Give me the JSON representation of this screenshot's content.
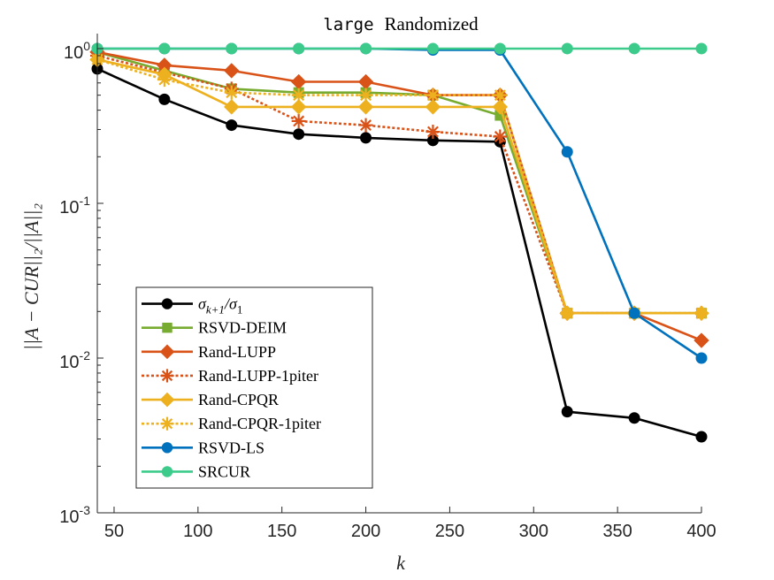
{
  "chart_data": {
    "type": "line",
    "title_mono": "large",
    "title_rest": "Randomized",
    "xlabel": "k",
    "ylabel": "||A − CUR||₂/||A||₂",
    "xlim": [
      40,
      400
    ],
    "ylim": [
      0.001,
      1.25
    ],
    "yscale": "log",
    "x_ticks": [
      50,
      100,
      150,
      200,
      250,
      300,
      350,
      400
    ],
    "y_ticks": [
      {
        "value": 0.001,
        "base": "10",
        "exp": "-3"
      },
      {
        "value": 0.01,
        "base": "10",
        "exp": "-2"
      },
      {
        "value": 0.1,
        "base": "10",
        "exp": "-1"
      },
      {
        "value": 1,
        "base": "10",
        "exp": "0"
      }
    ],
    "grid": false,
    "legend_position": "bottom-left",
    "series": [
      {
        "name": "σk+1/σ1",
        "label_main": "σ",
        "label_sub1": "k+1",
        "label_sep": "/σ",
        "label_sub2": "1",
        "color": "#000000",
        "marker": "circle",
        "dash": "solid",
        "x": [
          40,
          80,
          120,
          160,
          200,
          240,
          280,
          320,
          360,
          400
        ],
        "y": [
          0.74,
          0.47,
          0.32,
          0.28,
          0.265,
          0.255,
          0.25,
          0.0045,
          0.0041,
          0.0031
        ]
      },
      {
        "name": "RSVD-DEIM",
        "color": "#77AC30",
        "marker": "square",
        "dash": "solid",
        "x": [
          40,
          80,
          120,
          160,
          200,
          240,
          280,
          320,
          360,
          400
        ],
        "y": [
          0.95,
          0.72,
          0.55,
          0.52,
          0.52,
          0.5,
          0.37,
          0.0195,
          0.0195,
          0.0195
        ]
      },
      {
        "name": "Rand-LUPP",
        "color": "#D95319",
        "marker": "diamond",
        "dash": "solid",
        "x": [
          40,
          80,
          120,
          160,
          200,
          240,
          280,
          320,
          360,
          400
        ],
        "y": [
          0.95,
          0.78,
          0.72,
          0.61,
          0.61,
          0.5,
          0.5,
          0.0195,
          0.0195,
          0.013
        ]
      },
      {
        "name": "Rand-LUPP-1piter",
        "color": "#D95319",
        "marker": "asterisk",
        "dash": "dotted",
        "x": [
          40,
          80,
          120,
          160,
          200,
          240,
          280,
          320,
          360,
          400
        ],
        "y": [
          0.9,
          0.7,
          0.55,
          0.34,
          0.32,
          0.29,
          0.27,
          0.0195,
          0.0195,
          0.0195
        ]
      },
      {
        "name": "Rand-CPQR",
        "color": "#EDB120",
        "marker": "diamond",
        "dash": "solid",
        "x": [
          40,
          80,
          120,
          160,
          200,
          240,
          280,
          320,
          360,
          400
        ],
        "y": [
          0.85,
          0.68,
          0.42,
          0.42,
          0.42,
          0.42,
          0.42,
          0.0195,
          0.0195,
          0.0195
        ]
      },
      {
        "name": "Rand-CPQR-1piter",
        "color": "#EDB120",
        "marker": "asterisk",
        "dash": "dotted",
        "x": [
          40,
          80,
          120,
          160,
          200,
          240,
          280,
          320,
          360,
          400
        ],
        "y": [
          0.85,
          0.63,
          0.52,
          0.5,
          0.5,
          0.5,
          0.5,
          0.0195,
          0.0195,
          0.0195
        ]
      },
      {
        "name": "RSVD-LS",
        "color": "#0072BD",
        "marker": "circle",
        "dash": "solid",
        "x": [
          40,
          80,
          120,
          160,
          200,
          240,
          280,
          320,
          360,
          400
        ],
        "y": [
          1.0,
          1.0,
          1.0,
          1.0,
          1.0,
          0.98,
          0.98,
          0.215,
          0.0195,
          0.01
        ]
      },
      {
        "name": "SRCUR",
        "color": "#3CCB8B",
        "marker": "circle",
        "dash": "solid",
        "x": [
          40,
          80,
          120,
          160,
          200,
          240,
          280,
          320,
          360,
          400
        ],
        "y": [
          1.0,
          1.0,
          1.0,
          1.0,
          1.0,
          1.0,
          1.0,
          1.0,
          1.0,
          1.0
        ]
      }
    ]
  }
}
